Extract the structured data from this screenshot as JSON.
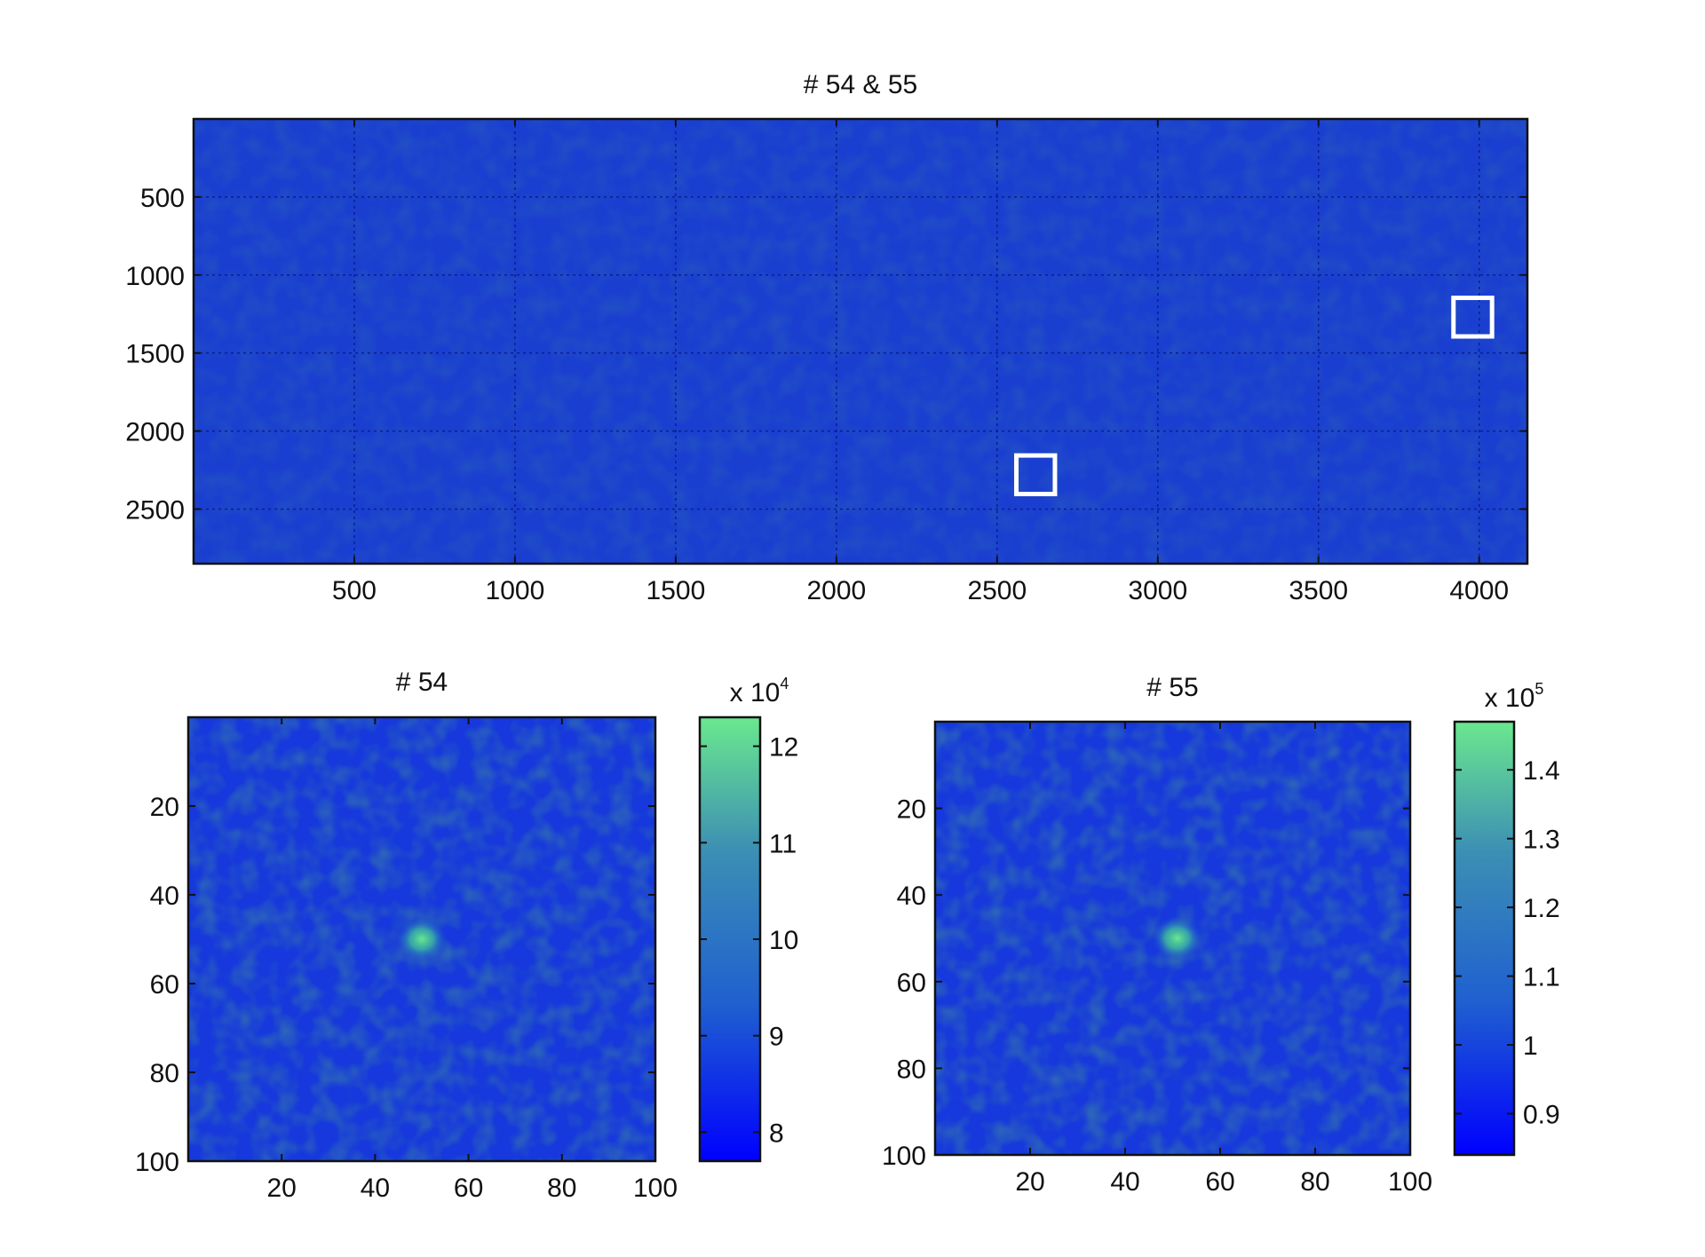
{
  "chart_data": [
    {
      "type": "heatmap",
      "title": "# 54 & 55",
      "xlabel": "",
      "ylabel": "",
      "x_ticks": [
        500,
        1000,
        1500,
        2000,
        2500,
        3000,
        3500,
        4000
      ],
      "y_ticks": [
        500,
        1000,
        1500,
        2000,
        2500
      ],
      "xlim": [
        0,
        4150
      ],
      "ylim": [
        0,
        2850
      ],
      "y_reversed": true,
      "grid": true,
      "colormap": [
        "#0000ff",
        "#6ae88e"
      ],
      "background_color": "#1a3fd0",
      "annotations": [
        {
          "shape": "square",
          "x": 2620,
          "y": 2280,
          "size": 120,
          "color": "#ffffff"
        },
        {
          "shape": "square",
          "x": 3980,
          "y": 1270,
          "size": 120,
          "color": "#ffffff"
        }
      ]
    },
    {
      "type": "heatmap",
      "title": "# 54",
      "xlabel": "",
      "ylabel": "",
      "x_ticks": [
        20,
        40,
        60,
        80,
        100
      ],
      "y_ticks": [
        20,
        40,
        60,
        80,
        100
      ],
      "xlim": [
        0,
        100
      ],
      "ylim": [
        0,
        100
      ],
      "y_reversed": true,
      "background_color": "#1638dc",
      "peak": {
        "x": 50,
        "y": 50
      },
      "colorbar": {
        "ticks": [
          8,
          9,
          10,
          11,
          12
        ],
        "range": [
          7.7,
          12.3
        ],
        "multiplier": "x 10",
        "exponent": "4",
        "colors": [
          "#0000ff",
          "#1f5fd0",
          "#3c8fb4",
          "#6ae88e"
        ]
      }
    },
    {
      "type": "heatmap",
      "title": "# 55",
      "xlabel": "",
      "ylabel": "",
      "x_ticks": [
        20,
        40,
        60,
        80,
        100
      ],
      "y_ticks": [
        20,
        40,
        60,
        80,
        100
      ],
      "xlim": [
        0,
        100
      ],
      "ylim": [
        0,
        100
      ],
      "y_reversed": true,
      "background_color": "#1638dc",
      "peak": {
        "x": 51,
        "y": 50
      },
      "colorbar": {
        "ticks": [
          0.9,
          1,
          1.1,
          1.2,
          1.3,
          1.4
        ],
        "range": [
          0.84,
          1.47
        ],
        "multiplier": "x 10",
        "exponent": "5",
        "colors": [
          "#0000ff",
          "#1f5fd0",
          "#3c8fb4",
          "#6ae88e"
        ]
      }
    }
  ]
}
